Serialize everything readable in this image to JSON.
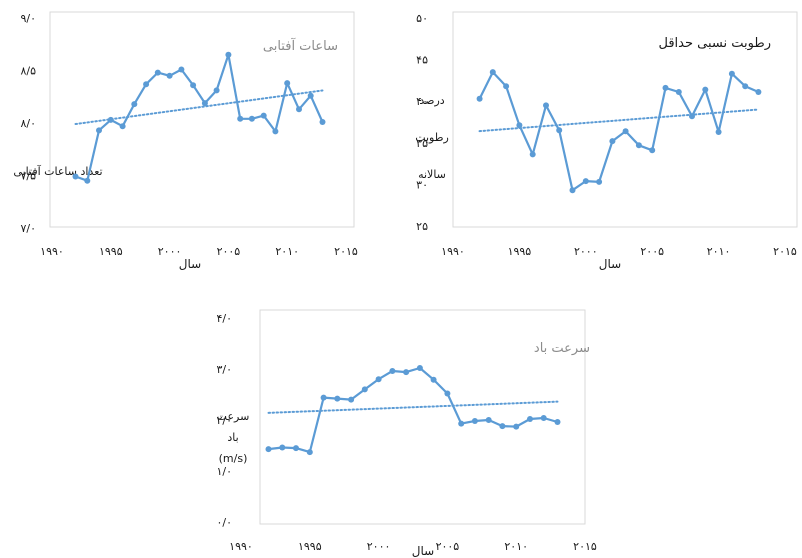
{
  "chart_data": [
    {
      "type": "line",
      "title": "ساعات آفتابی",
      "title_color": "#8c8c8c",
      "xlabel": "سال",
      "ylabel": "تعداد ساعات آفتابی",
      "xlim": [
        1990,
        2015
      ],
      "ylim": [
        7.0,
        9.0
      ],
      "x_ticks": [
        1990,
        1995,
        2000,
        2005,
        2010,
        2015
      ],
      "x_tick_labels": [
        "۱۹۹۰",
        "۱۹۹۵",
        "۲۰۰۰",
        "۲۰۰۵",
        "۲۰۱۰",
        "۲۰۱۵"
      ],
      "y_ticks": [
        7.0,
        7.5,
        8.0,
        8.5,
        9.0
      ],
      "y_tick_labels": [
        "۷/۰",
        "۷/۵",
        "۸/۰",
        "۸/۵",
        "۹/۰"
      ],
      "grid": false,
      "series": [
        {
          "color": "#5b9bd5",
          "x": [
            1992,
            1993,
            1994,
            1995,
            1996,
            1997,
            1998,
            1999,
            2000,
            2001,
            2002,
            2003,
            2004,
            2005,
            2006,
            2007,
            2008,
            2009,
            2010,
            2011,
            2012,
            2013,
            2014
          ],
          "y": [
            7.49,
            7.45,
            7.93,
            8.03,
            7.97,
            8.18,
            8.37,
            8.48,
            8.45,
            8.51,
            8.36,
            8.19,
            8.31,
            8.65,
            8.04,
            8.04,
            8.07,
            7.92,
            8.38,
            8.13,
            8.26,
            8.01,
            null
          ]
        }
      ],
      "trendline": {
        "color": "#5b9bd5",
        "style": "dotted",
        "x": [
          1992,
          2013
        ],
        "y": [
          7.99,
          8.31
        ]
      }
    },
    {
      "type": "line",
      "title": "رطوبت نسبی حداقل",
      "title_color": "#1a1a1a",
      "xlabel": "سال",
      "ylabel_lines": [
        "درصد",
        "رطوبت",
        "سالانه"
      ],
      "xlim": [
        1990,
        2015
      ],
      "ylim": [
        25,
        50
      ],
      "x_ticks": [
        1990,
        1995,
        2000,
        2005,
        2010,
        2015
      ],
      "x_tick_labels": [
        "۱۹۹۰",
        "۱۹۹۵",
        "۲۰۰۰",
        "۲۰۰۵",
        "۲۰۱۰",
        "۲۰۱۵"
      ],
      "y_ticks": [
        25,
        30,
        35,
        40,
        45,
        50
      ],
      "y_tick_labels": [
        "۲۵",
        "۳۰",
        "۳۵",
        "۴۰",
        "۴۵",
        "۵۰"
      ],
      "grid": false,
      "series": [
        {
          "color": "#5b9bd5",
          "x": [
            1992,
            1993,
            1994,
            1995,
            1996,
            1997,
            1998,
            1999,
            2000,
            2001,
            2002,
            2003,
            2004,
            2005,
            2006,
            2007,
            2008,
            2009,
            2010,
            2011,
            2012,
            2013
          ],
          "y": [
            40.3,
            43.5,
            41.8,
            37.1,
            33.6,
            39.5,
            36.5,
            29.3,
            30.4,
            30.3,
            35.2,
            36.4,
            34.7,
            34.1,
            41.6,
            41.1,
            38.2,
            41.4,
            36.3,
            43.3,
            41.8,
            41.1
          ]
        }
      ],
      "trendline": {
        "color": "#5b9bd5",
        "style": "dotted",
        "x": [
          1992,
          2013
        ],
        "y": [
          36.4,
          39.0
        ]
      }
    },
    {
      "type": "line",
      "title": "سرعت باد",
      "title_color": "#8c8c8c",
      "xlabel": "سال",
      "ylabel_lines": [
        "سرعت",
        "باد",
        "(m/s)"
      ],
      "xlim": [
        1990,
        2015
      ],
      "ylim": [
        0,
        4
      ],
      "x_ticks": [
        1990,
        1995,
        2000,
        2005,
        2010,
        2015
      ],
      "x_tick_labels": [
        "۱۹۹۰",
        "۱۹۹۵",
        "۲۰۰۰",
        "۲۰۰۵",
        "۲۰۱۰",
        "۲۰۱۵"
      ],
      "y_ticks": [
        0,
        1,
        2,
        3,
        4
      ],
      "y_tick_labels": [
        "۰/۰",
        "۱/۰",
        "۲/۰",
        "۳/۰",
        "۴/۰"
      ],
      "grid": false,
      "series": [
        {
          "color": "#5b9bd5",
          "x": [
            1992,
            1993,
            1994,
            1995,
            1996,
            1997,
            1998,
            1999,
            2000,
            2001,
            2002,
            2003,
            2004,
            2005,
            2006,
            2007,
            2008,
            2009,
            2010,
            2011,
            2012,
            2013
          ],
          "y": [
            1.43,
            1.46,
            1.45,
            1.37,
            2.44,
            2.42,
            2.4,
            2.6,
            2.8,
            2.96,
            2.94,
            3.02,
            2.79,
            2.52,
            1.93,
            1.98,
            2.0,
            1.88,
            1.87,
            2.02,
            2.04,
            1.96
          ]
        }
      ],
      "trendline": {
        "color": "#5b9bd5",
        "style": "dotted",
        "x": [
          1992,
          2013
        ],
        "y": [
          2.14,
          2.36
        ]
      }
    }
  ]
}
